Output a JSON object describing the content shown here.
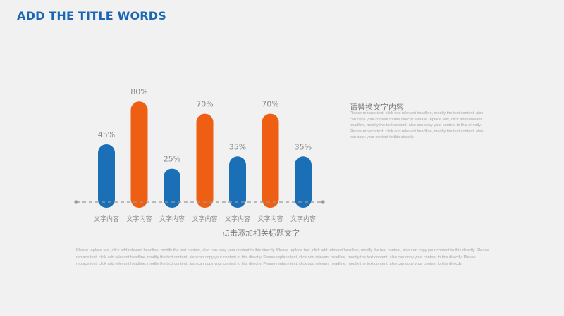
{
  "title": "ADD THE TITLE WORDS",
  "colors": {
    "blue": "#1a6fb7",
    "orange": "#ee5f14",
    "axis": "#9a9a9a",
    "title": "#1a66b3"
  },
  "chart_data": {
    "type": "bar",
    "categories": [
      "文字内容",
      "文字内容",
      "文字内容",
      "文字内容",
      "文字内容",
      "文字内容",
      "文字内容"
    ],
    "values": [
      45,
      80,
      25,
      70,
      35,
      70,
      35
    ],
    "value_labels": [
      "45%",
      "80%",
      "25%",
      "70%",
      "35%",
      "70%",
      "35%"
    ],
    "bar_colors": [
      "#1a6fb7",
      "#ee5f14",
      "#1a6fb7",
      "#ee5f14",
      "#1a6fb7",
      "#ee5f14",
      "#1a6fb7"
    ],
    "xlabel": "点击添加相关标题文字",
    "ylim": [
      0,
      100
    ],
    "grid": false,
    "legend": "none"
  },
  "side_text": {
    "title": "请替换文字内容",
    "body": "Please replace text, click add relevant headline, modify the text content, also can copy your content to this directly. Please replace text, click add relevant headline, modify the text content, also can copy your content to this directly. Please replace text, click add relevant headline, modify the text content, also can copy your content to this directly."
  },
  "footer_text": "Please replace text, click add relevant headline, modify the text content, also can copy your content to this directly. Please replace text, click add relevant headline, modify the text content, also can copy your content to this directly. Please replace text, click add relevant headline, modify the text content, also can copy your content to this directly. Please replace text, click add relevant headline, modify the text content, also can copy your content to this directly. Please replace text, click add relevant headline, modify the text content, also can copy your content to this directly. Please replace text, click add relevant headline, modify the text content, also can copy your content to this directly."
}
